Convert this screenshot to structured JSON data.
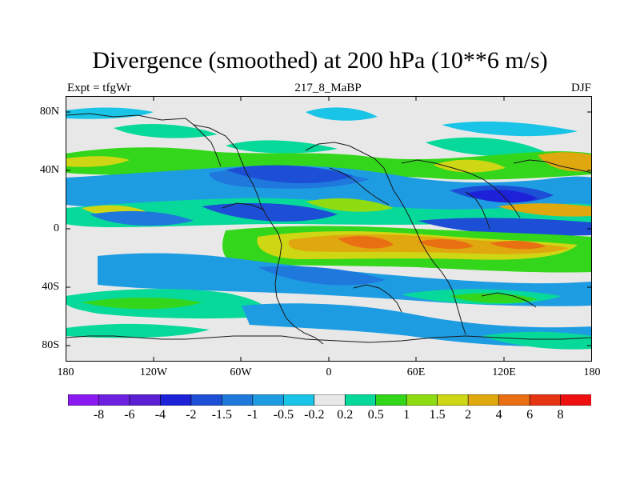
{
  "title": "Divergence (smoothed) at 200 hPa (10**6 m/s)",
  "subtitle": {
    "left": "Expt = tfgWr",
    "center": "217_8_MaBP",
    "right": "DJF"
  },
  "latitude_labels": [
    "80N",
    "40N",
    "0",
    "40S",
    "80S"
  ],
  "longitude_labels": [
    "180",
    "120W",
    "60W",
    "0",
    "60E",
    "120E",
    "180"
  ],
  "colorbar": {
    "labels": [
      "-8",
      "-6",
      "-4",
      "-2",
      "-1.5",
      "-1",
      "-0.5",
      "-0.2",
      "0.2",
      "0.5",
      "1",
      "1.5",
      "2",
      "4",
      "6",
      "8"
    ],
    "colors": [
      "#8a1bf0",
      "#6e20e0",
      "#5a1fd4",
      "#1d22d9",
      "#1c4fd6",
      "#1f78dc",
      "#1e9ce2",
      "#19c4e6",
      "#e8e8e8",
      "#07d99a",
      "#33d61a",
      "#8fdc12",
      "#cfd614",
      "#e0a80f",
      "#e87013",
      "#e63513",
      "#ee1010"
    ]
  },
  "palette": {
    "background": "#e8e8e8",
    "coast": "#1a1a1a"
  }
}
